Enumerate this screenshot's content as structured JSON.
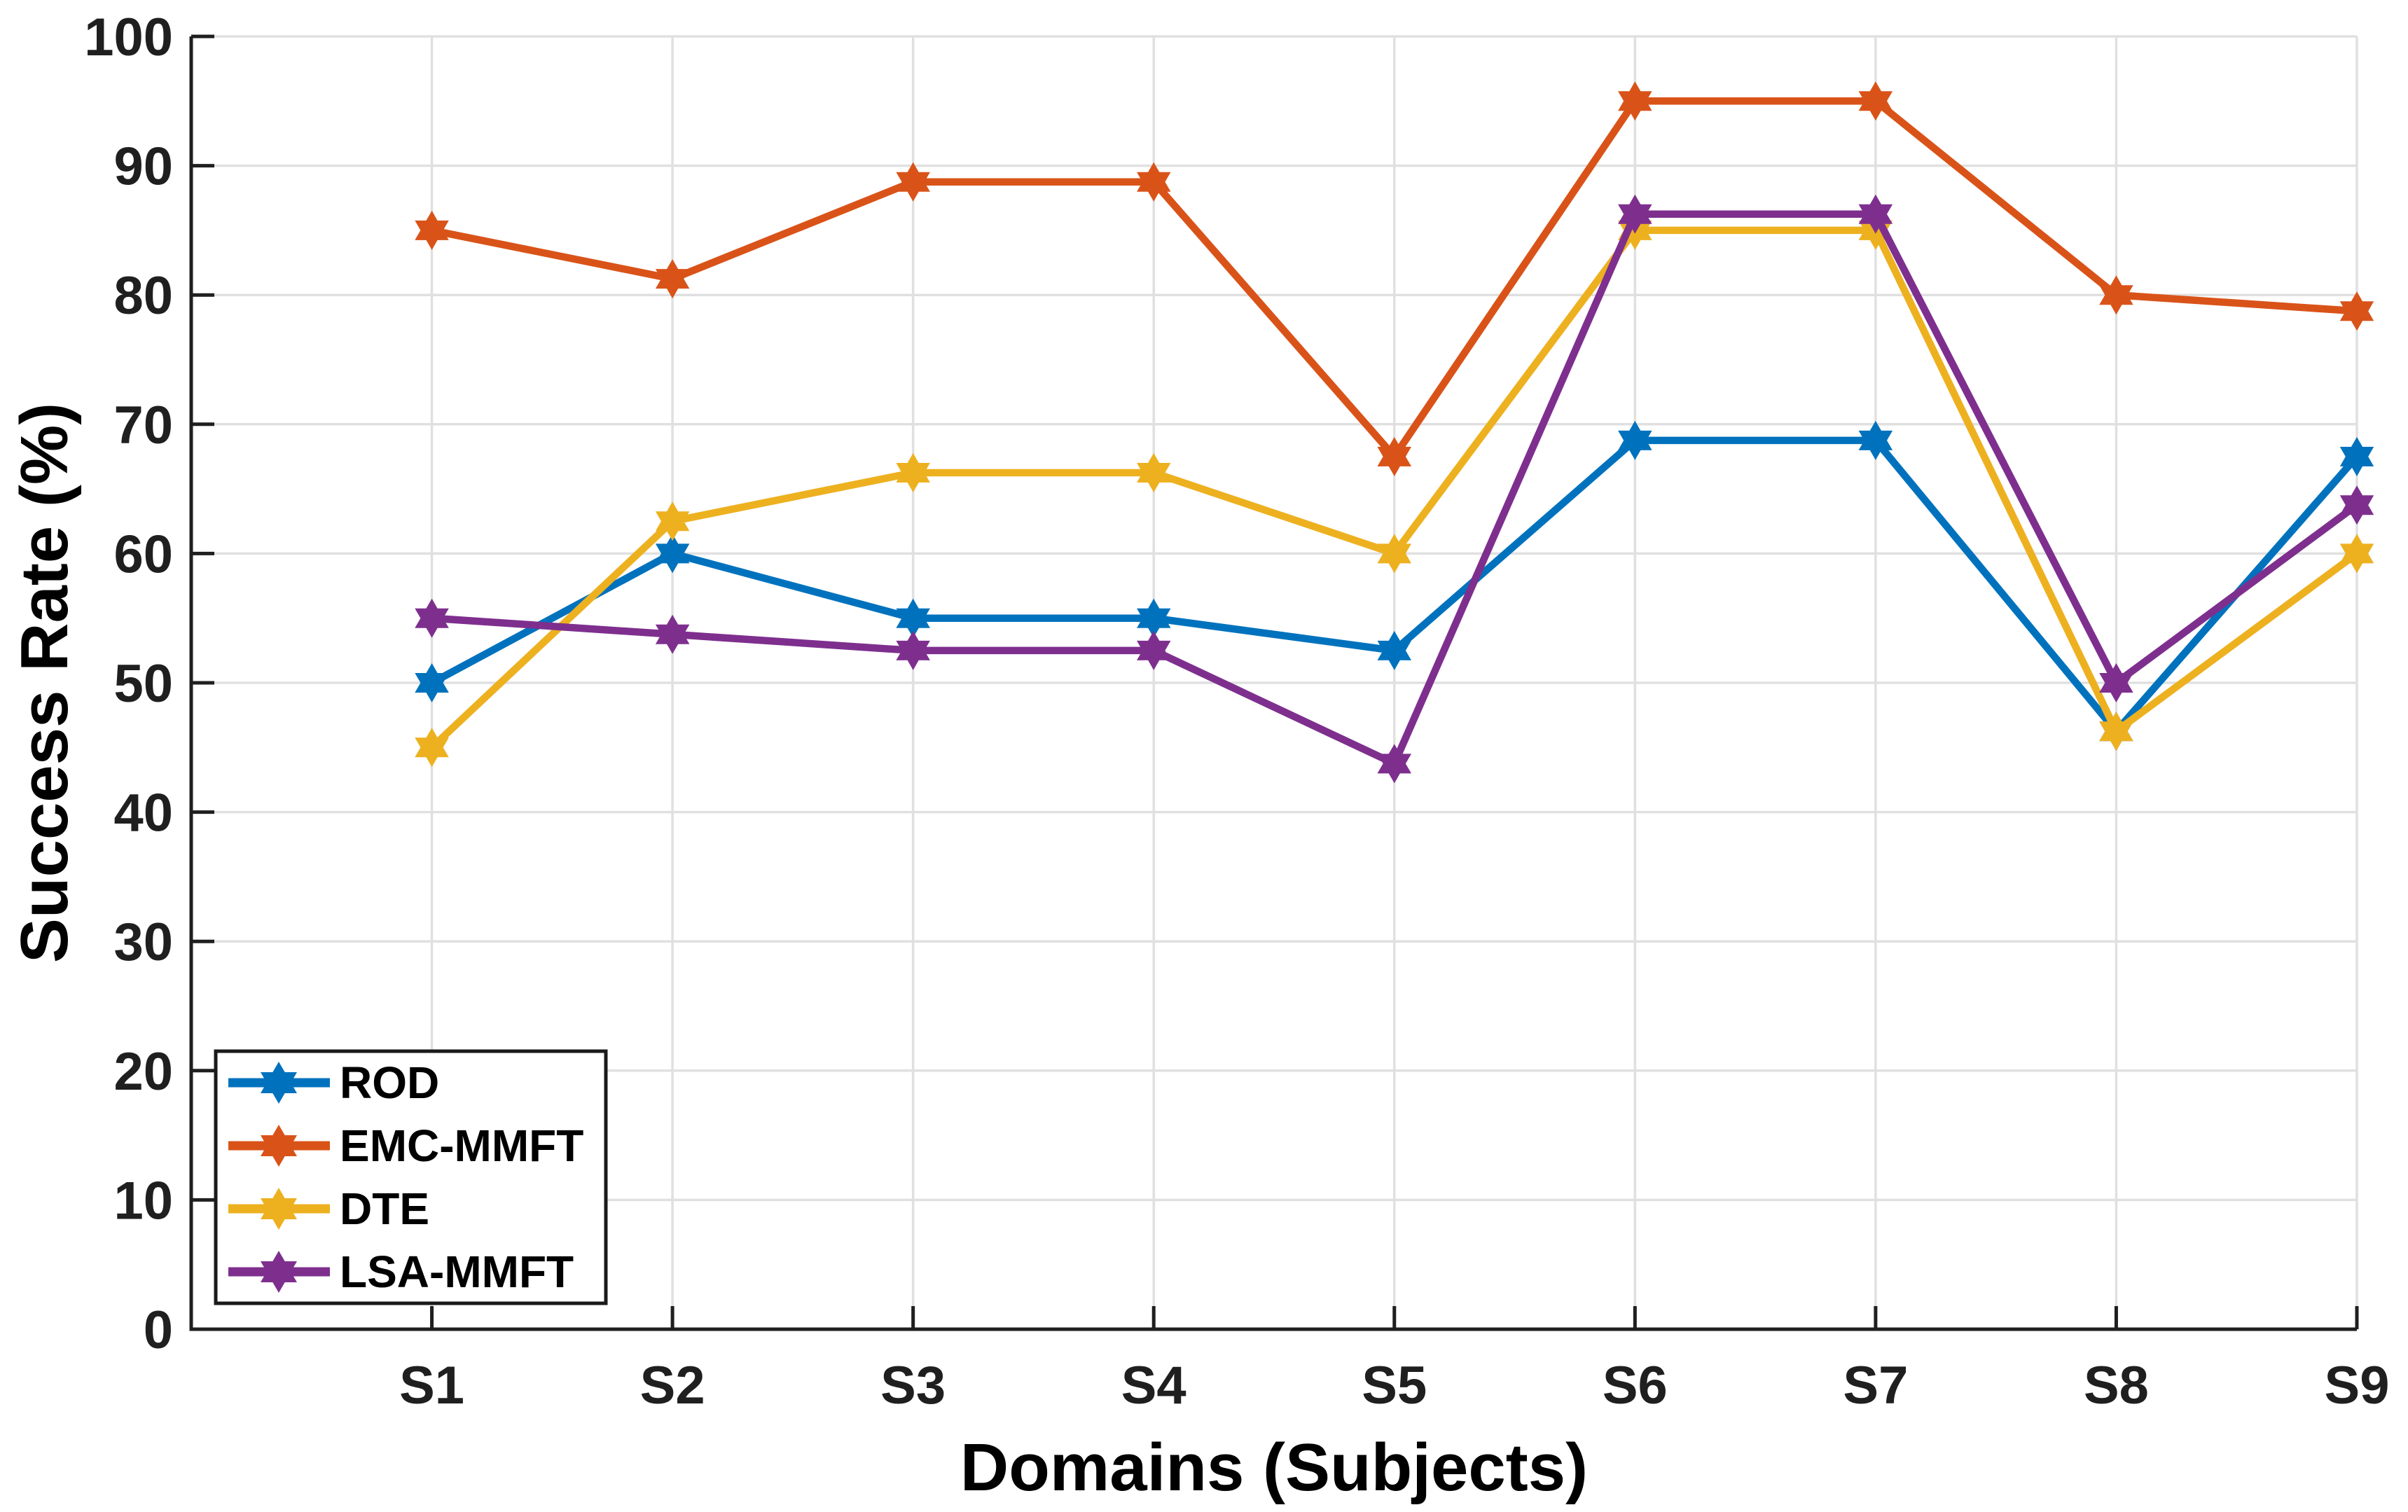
{
  "figure": {
    "background": "#ffffff",
    "axis_color": "#1f1f1f",
    "grid_color": "#e0e0e0",
    "text_color": "#1f1f1f",
    "label_color": "#000000",
    "legend_border_color": "#1a1a1a"
  },
  "chart_data": {
    "type": "line",
    "title": "",
    "xlabel": "Domains (Subjects)",
    "ylabel": "Success Rate (%)",
    "categories": [
      "S1",
      "S2",
      "S3",
      "S4",
      "S5",
      "S6",
      "S7",
      "S8",
      "S9"
    ],
    "ylim": [
      0,
      100
    ],
    "yticks": [
      0,
      10,
      20,
      30,
      40,
      50,
      60,
      70,
      80,
      90,
      100
    ],
    "grid": true,
    "legend_position": "southwest",
    "marker": "hexagram",
    "series": [
      {
        "name": "ROD",
        "color": "#0072BD",
        "values": [
          50,
          60,
          55,
          55,
          52.5,
          68.75,
          68.75,
          46.25,
          67.5
        ]
      },
      {
        "name": "EMC-MMFT",
        "color": "#D95319",
        "values": [
          85,
          81.25,
          88.75,
          88.75,
          67.5,
          95,
          95,
          80,
          78.75
        ]
      },
      {
        "name": "DTE",
        "color": "#EDB120",
        "values": [
          45,
          62.5,
          66.25,
          66.25,
          60,
          85,
          85,
          46.25,
          60
        ]
      },
      {
        "name": "LSA-MMFT",
        "color": "#7E2F8E",
        "values": [
          55,
          53.75,
          52.5,
          52.5,
          43.75,
          86.25,
          86.25,
          50,
          63.75
        ]
      }
    ]
  }
}
